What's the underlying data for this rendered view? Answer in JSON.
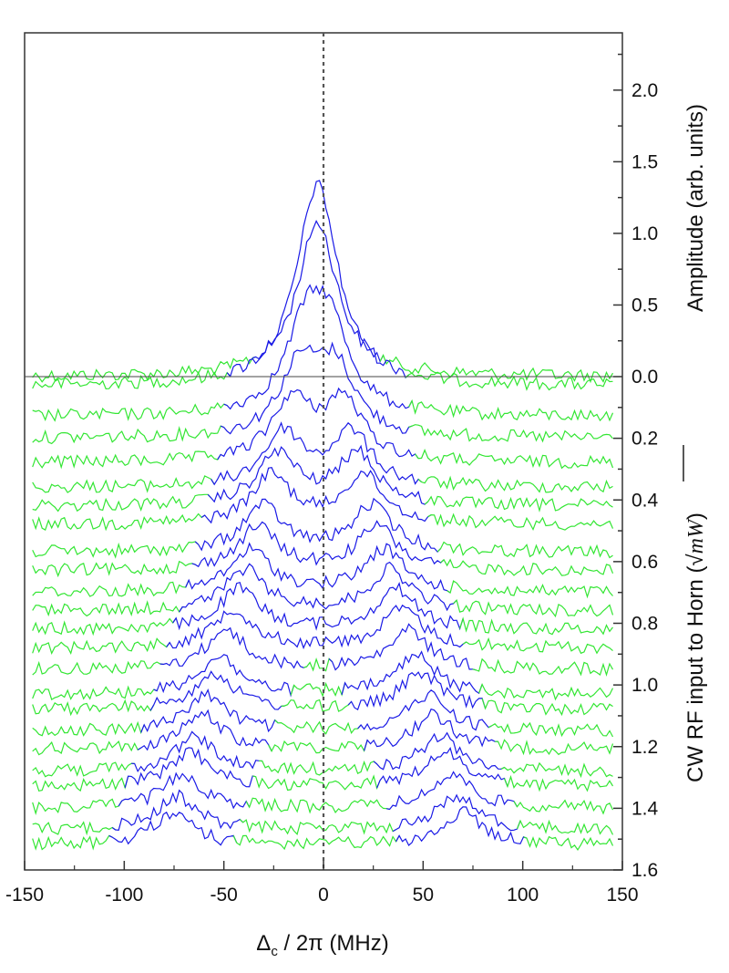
{
  "chart_data": {
    "type": "line",
    "xlabel": "Δ",
    "xlabel_sub": "c",
    "xlabel_rest": " / 2π (MHz)",
    "x_ticks": [
      "-150",
      "-100",
      "-50",
      "0",
      "50",
      "100",
      "150"
    ],
    "xlim": [
      -150,
      150
    ],
    "right_top_label": "Amplitude (arb. units)",
    "right_top_ticks": [
      "0.0",
      "0.5",
      "1.0",
      "1.5",
      "2.0"
    ],
    "right_top_lim": [
      0,
      2.4
    ],
    "right_bottom_label": "CW RF input to Horn (",
    "right_bottom_label_unit": "mW",
    "right_bottom_ticks": [
      "0.2",
      "0.4",
      "0.6",
      "0.8",
      "1.0",
      "1.2",
      "1.4",
      "1.6"
    ],
    "right_bottom_lim": [
      0,
      1.6
    ],
    "reference_line_x": 0,
    "trace_colors": {
      "resonance": "#1a1ae6",
      "background": "#33e633"
    },
    "peak_amplitude_at_zero_drive": 1.08,
    "traces_rf_input_sqrt_mW": [
      0.0,
      0.03,
      0.13,
      0.2,
      0.28,
      0.36,
      0.42,
      0.48,
      0.57,
      0.63,
      0.7,
      0.76,
      0.82,
      0.88,
      0.95,
      1.03,
      1.08,
      1.15,
      1.21,
      1.28,
      1.33,
      1.4,
      1.47,
      1.52
    ],
    "splitting_MHz": [
      0,
      4,
      12,
      18,
      26,
      34,
      40,
      46,
      55,
      60,
      67,
      73,
      79,
      85,
      92,
      99,
      104,
      111,
      116,
      123,
      128,
      135,
      141,
      146
    ],
    "peak_amplitude_trace": [
      1.08,
      0.8,
      0.62,
      0.52,
      0.47,
      0.42,
      0.4,
      0.38,
      0.36,
      0.34,
      0.33,
      0.32,
      0.31,
      0.3,
      0.3,
      0.29,
      0.28,
      0.28,
      0.27,
      0.27,
      0.27,
      0.26,
      0.26,
      0.25
    ]
  }
}
